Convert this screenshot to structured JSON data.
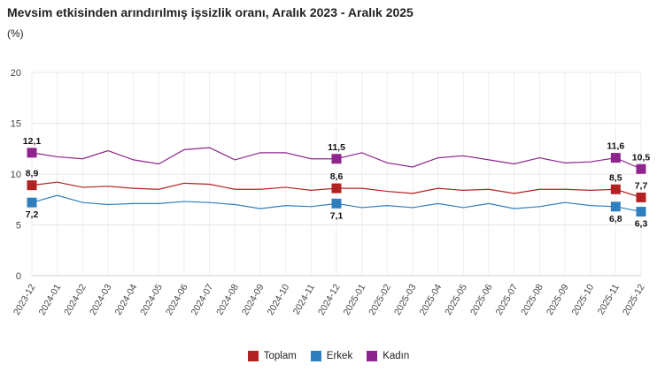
{
  "chart_data": {
    "type": "line",
    "title": "Mevsim etkisinden arındırılmış işsizlik oranı, Aralık 2023 - Aralık 2025",
    "ylabel": "(%)",
    "ylim": [
      0,
      20
    ],
    "yticks": [
      0,
      5,
      10,
      15,
      20
    ],
    "grid": true,
    "legend_position": "bottom",
    "categories": [
      "2023-12",
      "2024-01",
      "2024-02",
      "2024-03",
      "2024-04",
      "2024-05",
      "2024-06",
      "2024-07",
      "2024-08",
      "2024-09",
      "2024-10",
      "2024-11",
      "2024-12",
      "2025-01",
      "2025-02",
      "2025-03",
      "2025-04",
      "2025-05",
      "2025-06",
      "2025-07",
      "2025-08",
      "2025-09",
      "2025-10",
      "2025-11",
      "2025-12"
    ],
    "series": [
      {
        "name": "Toplam",
        "color": "#b22222",
        "values": [
          8.9,
          9.2,
          8.7,
          8.8,
          8.6,
          8.5,
          9.1,
          9.0,
          8.5,
          8.5,
          8.7,
          8.4,
          8.6,
          8.6,
          8.3,
          8.1,
          8.6,
          8.4,
          8.5,
          8.1,
          8.5,
          8.5,
          8.4,
          8.5,
          7.7
        ],
        "labels": {
          "0": "8,9",
          "12": "8,6",
          "23": "8,5",
          "24": "7,7"
        }
      },
      {
        "name": "Erkek",
        "color": "#2f7fbf",
        "values": [
          7.2,
          7.9,
          7.2,
          7.0,
          7.1,
          7.1,
          7.3,
          7.2,
          7.0,
          6.6,
          6.9,
          6.8,
          7.1,
          6.7,
          6.9,
          6.7,
          7.1,
          6.7,
          7.1,
          6.6,
          6.8,
          7.2,
          6.9,
          6.8,
          6.3
        ],
        "labels": {
          "0": "7,2",
          "12": "7,1",
          "23": "6,8",
          "24": "6,3"
        }
      },
      {
        "name": "Kadın",
        "color": "#8e248e",
        "values": [
          12.1,
          11.7,
          11.5,
          12.3,
          11.4,
          11.0,
          12.4,
          12.6,
          11.4,
          12.1,
          12.1,
          11.5,
          11.5,
          12.1,
          11.1,
          10.7,
          11.6,
          11.8,
          11.4,
          11.0,
          11.6,
          11.1,
          11.2,
          11.6,
          10.5
        ],
        "labels": {
          "0": "12,1",
          "12": "11,5",
          "23": "11,6",
          "24": "10,5"
        }
      }
    ]
  }
}
